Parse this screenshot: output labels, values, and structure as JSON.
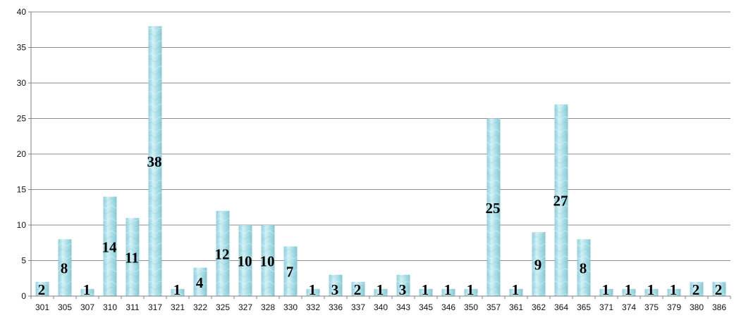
{
  "chart_data": {
    "type": "bar",
    "title": "",
    "xlabel": "",
    "ylabel": "",
    "ylim": [
      0,
      40
    ],
    "yticks": [
      0,
      5,
      10,
      15,
      20,
      25,
      30,
      35,
      40
    ],
    "grid": true,
    "legend": "none",
    "categories": [
      "301",
      "305",
      "307",
      "310",
      "311",
      "317",
      "321",
      "322",
      "325",
      "327",
      "328",
      "330",
      "332",
      "336",
      "337",
      "340",
      "343",
      "345",
      "346",
      "350",
      "357",
      "361",
      "362",
      "364",
      "365",
      "371",
      "374",
      "375",
      "379",
      "380",
      "386"
    ],
    "values": [
      2,
      8,
      1,
      14,
      11,
      38,
      1,
      4,
      12,
      10,
      10,
      7,
      1,
      3,
      2,
      1,
      3,
      1,
      1,
      1,
      25,
      1,
      9,
      27,
      8,
      1,
      1,
      1,
      1,
      2,
      2
    ],
    "data_labels": [
      "2",
      "8",
      "1",
      "14",
      "11",
      "38",
      "1",
      "4",
      "12",
      "10",
      "10",
      "7",
      "1",
      "3",
      "2",
      "1",
      "3",
      "1",
      "1",
      "1",
      "25",
      "1",
      "9",
      "27",
      "8",
      "1",
      "1",
      "1",
      "1",
      "2",
      "2"
    ],
    "colors": {
      "bar_fill": "#a9dce6",
      "bar_light": "#d4f0f5",
      "bar_dark": "#7fc7d6",
      "gridline": "#8c8c8c",
      "axis": "#7f7f7f"
    }
  }
}
